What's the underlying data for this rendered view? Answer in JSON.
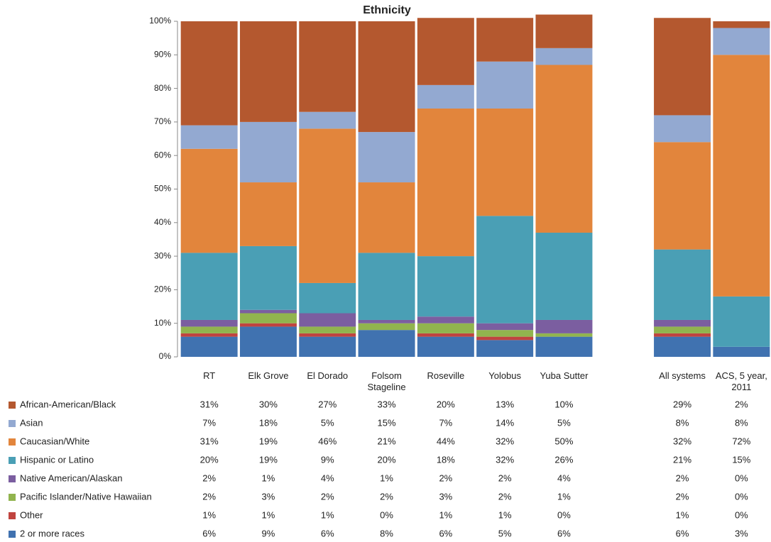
{
  "chart_data": {
    "type": "stacked_bar",
    "title": "Ethnicity",
    "categories": [
      "RT",
      "Elk Grove",
      "El Dorado",
      "Folsom Stageline",
      "Roseville",
      "Yolobus",
      "Yuba Sutter",
      null,
      "All systems",
      "ACS, 5 year, 2011"
    ],
    "series": [
      {
        "name": "African-American/Black",
        "color": "#b4582f",
        "values": [
          31,
          30,
          27,
          33,
          20,
          13,
          10,
          null,
          29,
          2
        ],
        "value_labels": [
          "31%",
          "30%",
          "27%",
          "33%",
          "20%",
          "13%",
          "10%",
          null,
          "29%",
          "2%"
        ]
      },
      {
        "name": "Asian",
        "color": "#93a9d1",
        "values": [
          7,
          18,
          5,
          15,
          7,
          14,
          5,
          null,
          8,
          8
        ],
        "value_labels": [
          "7%",
          "18%",
          "5%",
          "15%",
          "7%",
          "14%",
          "5%",
          null,
          "8%",
          "8%"
        ]
      },
      {
        "name": "Caucasian/White",
        "color": "#e2853c",
        "values": [
          31,
          19,
          46,
          21,
          44,
          32,
          50,
          null,
          32,
          72
        ],
        "value_labels": [
          "31%",
          "19%",
          "46%",
          "21%",
          "44%",
          "32%",
          "50%",
          null,
          "32%",
          "72%"
        ]
      },
      {
        "name": "Hispanic or Latino",
        "color": "#4a9fb5",
        "values": [
          20,
          19,
          9,
          20,
          18,
          32,
          26,
          null,
          21,
          15
        ],
        "value_labels": [
          "20%",
          "19%",
          "9%",
          "20%",
          "18%",
          "32%",
          "26%",
          null,
          "21%",
          "15%"
        ]
      },
      {
        "name": "Native American/Alaskan",
        "color": "#7b5ea0",
        "values": [
          2,
          1,
          4,
          1,
          2,
          2,
          4,
          null,
          2,
          0
        ],
        "value_labels": [
          "2%",
          "1%",
          "4%",
          "1%",
          "2%",
          "2%",
          "4%",
          null,
          "2%",
          "0%"
        ]
      },
      {
        "name": "Pacific Islander/Native Hawaiian",
        "color": "#91b44e",
        "values": [
          2,
          3,
          2,
          2,
          3,
          2,
          1,
          null,
          2,
          0
        ],
        "value_labels": [
          "2%",
          "3%",
          "2%",
          "2%",
          "3%",
          "2%",
          "1%",
          null,
          "2%",
          "0%"
        ]
      },
      {
        "name": "Other",
        "color": "#c0443f",
        "values": [
          1,
          1,
          1,
          0,
          1,
          1,
          0,
          null,
          1,
          0
        ],
        "value_labels": [
          "1%",
          "1%",
          "1%",
          "0%",
          "1%",
          "1%",
          "0%",
          null,
          "1%",
          "0%"
        ]
      },
      {
        "name": "2 or more races",
        "color": "#4072b0",
        "values": [
          6,
          9,
          6,
          8,
          6,
          5,
          6,
          null,
          6,
          3
        ],
        "value_labels": [
          "6%",
          "9%",
          "6%",
          "8%",
          "6%",
          "5%",
          "6%",
          null,
          "6%",
          "3%"
        ]
      }
    ],
    "ylim": [
      0,
      100
    ],
    "yticks": [
      {
        "value": 0,
        "label": "0%"
      },
      {
        "value": 10,
        "label": "10%"
      },
      {
        "value": 20,
        "label": "20%"
      },
      {
        "value": 30,
        "label": "30%"
      },
      {
        "value": 40,
        "label": "40%"
      },
      {
        "value": 50,
        "label": "50%"
      },
      {
        "value": 60,
        "label": "60%"
      },
      {
        "value": 70,
        "label": "70%"
      },
      {
        "value": 80,
        "label": "80%"
      },
      {
        "value": 90,
        "label": "90%"
      },
      {
        "value": 100,
        "label": "100%"
      }
    ],
    "grid": false
  }
}
